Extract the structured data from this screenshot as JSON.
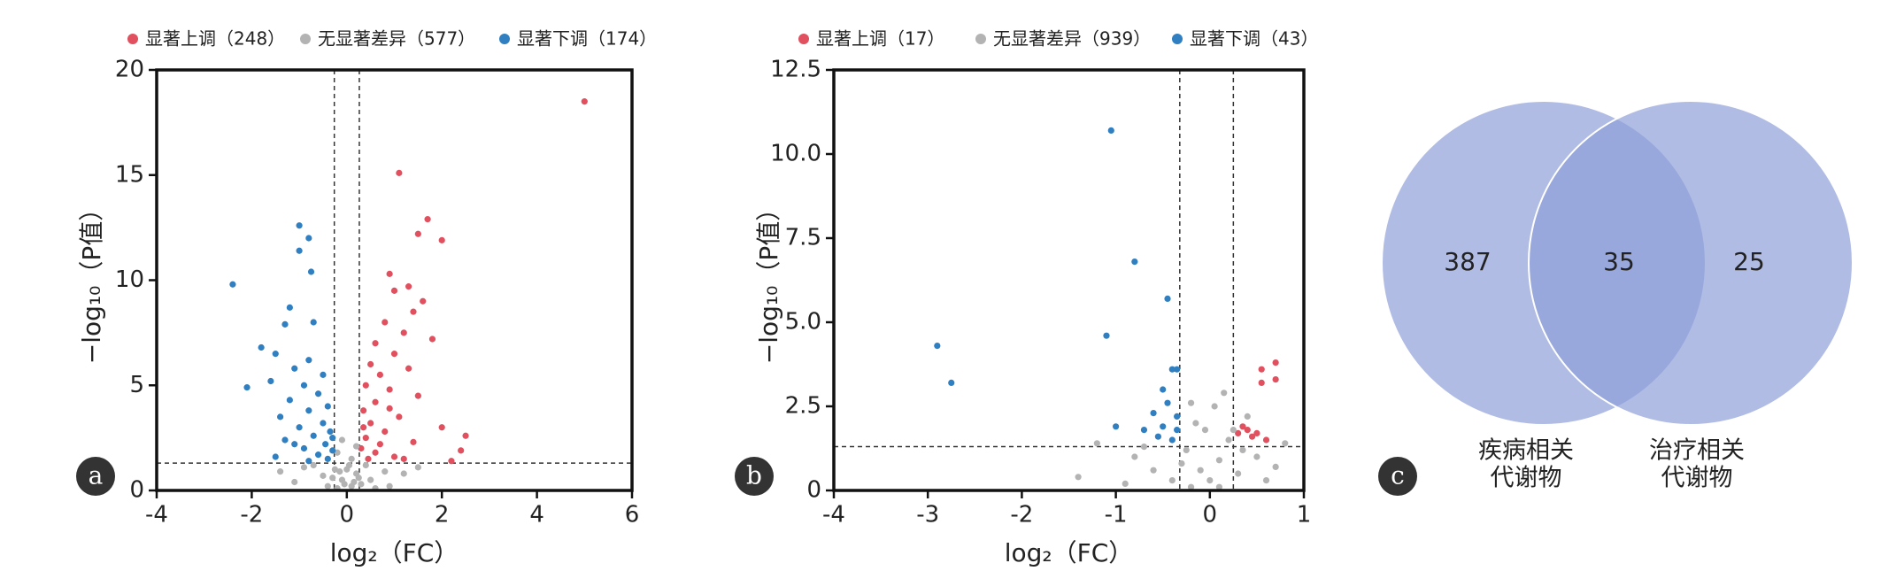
{
  "chart_data": [
    {
      "type": "scatter",
      "label": "a",
      "xlabel": "log₂（FC）",
      "ylabel": "−log₁₀（P值）",
      "xlim": [
        -4,
        6
      ],
      "xticks": [
        -4,
        -2,
        0,
        2,
        4,
        6
      ],
      "ylim": [
        0,
        20
      ],
      "yticks": [
        0,
        5,
        10,
        15,
        20
      ],
      "thresholds": {
        "x": [
          -0.263,
          0.263
        ],
        "y": 1.301
      },
      "series": [
        {
          "name": "显著上调（248）",
          "color": "#e0505e",
          "x": [
            5.0,
            1.1,
            1.7,
            1.5,
            2.0,
            0.9,
            1.3,
            1.0,
            1.6,
            1.4,
            0.8,
            1.2,
            0.6,
            1.8,
            1.0,
            0.5,
            0.7,
            1.3,
            0.4,
            0.9,
            1.5,
            0.6,
            0.35,
            1.1,
            0.5,
            2.0,
            0.8,
            0.4,
            1.4,
            2.5,
            0.3,
            0.6,
            1.0,
            2.4,
            0.45,
            0.7,
            0.35,
            0.9,
            1.2,
            2.2
          ],
          "values": [
            18.5,
            15.1,
            12.9,
            12.2,
            11.9,
            10.3,
            9.7,
            9.5,
            9.0,
            8.5,
            8.0,
            7.5,
            7.0,
            7.2,
            6.5,
            6.0,
            5.5,
            5.8,
            5.0,
            4.8,
            4.5,
            4.2,
            3.8,
            3.5,
            3.2,
            3.0,
            2.8,
            2.5,
            2.3,
            2.6,
            2.0,
            1.8,
            1.6,
            1.9,
            1.5,
            2.2,
            3.0,
            3.9,
            1.5,
            1.4
          ]
        },
        {
          "name": "无显著差异（577）",
          "color": "#b3b3b3",
          "x": [
            -0.2,
            0.1,
            -0.1,
            0.2,
            -0.25,
            0.05,
            0.15,
            -0.15,
            0.25,
            -0.05,
            0.5,
            -0.5,
            0.8,
            -0.9,
            0.4,
            -0.4,
            1.2,
            -1.1,
            0.6,
            -0.7,
            0.1,
            -0.2,
            0.2,
            -0.1,
            0.0,
            0.3,
            -0.3,
            1.5,
            -1.4,
            0.9
          ],
          "values": [
            0.1,
            0.2,
            0.5,
            0.8,
            1.0,
            1.2,
            0.4,
            0.9,
            0.6,
            0.3,
            0.5,
            0.7,
            0.9,
            1.1,
            1.2,
            0.2,
            0.8,
            0.4,
            0.1,
            1.2,
            1.5,
            1.8,
            2.1,
            2.4,
            1.0,
            0.3,
            0.6,
            1.1,
            0.9,
            0.2
          ]
        },
        {
          "name": "显著下调（174）",
          "color": "#2f7fc1",
          "x": [
            -2.4,
            -1.0,
            -0.8,
            -1.0,
            -0.75,
            -1.2,
            -0.7,
            -1.3,
            -1.8,
            -1.5,
            -0.8,
            -1.1,
            -0.5,
            -1.6,
            -0.9,
            -2.1,
            -0.6,
            -1.2,
            -0.4,
            -0.8,
            -1.4,
            -0.5,
            -1.0,
            -0.35,
            -0.7,
            -1.3,
            -0.45,
            -0.9,
            -0.3,
            -0.6,
            -1.5,
            -0.4,
            -0.8,
            -0.3,
            -1.1
          ],
          "values": [
            9.8,
            12.6,
            12.0,
            11.4,
            10.4,
            8.7,
            8.0,
            7.9,
            6.8,
            6.5,
            6.2,
            5.8,
            5.5,
            5.2,
            5.0,
            4.9,
            4.6,
            4.3,
            4.0,
            3.8,
            3.5,
            3.2,
            3.0,
            2.8,
            2.6,
            2.4,
            2.2,
            2.0,
            1.9,
            1.7,
            1.6,
            1.5,
            1.4,
            2.5,
            2.2
          ]
        }
      ]
    },
    {
      "type": "scatter",
      "label": "b",
      "xlabel": "log₂（FC）",
      "ylabel": "−log₁₀（P值）",
      "xlim": [
        -4,
        1
      ],
      "xticks": [
        -4,
        -3,
        -2,
        -1,
        0,
        1
      ],
      "ylim": [
        0,
        12.5
      ],
      "yticks": [
        0,
        2.5,
        {
          "value": 5,
          "label": "5.0"
        },
        7.5,
        {
          "value": 10,
          "label": "10.0"
        },
        12.5
      ],
      "thresholds": {
        "x": [
          -0.32,
          0.25
        ],
        "y": 1.301
      },
      "series": [
        {
          "name": "显著上调（17）",
          "color": "#e0505e",
          "x": [
            0.55,
            0.7,
            0.55,
            0.7,
            0.4,
            0.45,
            0.5,
            0.35,
            0.6,
            0.3
          ],
          "values": [
            3.6,
            3.8,
            3.2,
            3.3,
            1.8,
            1.6,
            1.7,
            1.9,
            1.5,
            1.7
          ]
        },
        {
          "name": "无显著差异（939）",
          "color": "#b3b3b3",
          "x": [
            -0.2,
            0.0,
            -0.1,
            0.1,
            -0.25,
            0.2,
            -0.15,
            0.05,
            0.15,
            -0.05,
            0.3,
            -0.3,
            0.5,
            -0.6,
            0.6,
            -0.8,
            -1.2,
            -1.4,
            0.8,
            0.7,
            -0.9,
            0.4,
            -0.2,
            0.25,
            -0.4,
            0.1,
            -0.7,
            0.35
          ],
          "values": [
            0.1,
            0.3,
            0.6,
            0.9,
            1.2,
            1.5,
            2.0,
            2.5,
            2.9,
            1.8,
            0.5,
            0.8,
            1.0,
            0.6,
            0.3,
            1.0,
            1.4,
            0.4,
            1.4,
            0.7,
            0.2,
            2.2,
            2.6,
            1.8,
            0.3,
            0.1,
            1.3,
            1.2
          ]
        },
        {
          "name": "显著下调（43）",
          "color": "#2f7fc1",
          "x": [
            -2.9,
            -2.75,
            -1.05,
            -0.8,
            -1.1,
            -0.45,
            -0.35,
            -0.4,
            -0.5,
            -0.45,
            -0.6,
            -0.35,
            -0.7,
            -0.5,
            -1.0,
            -0.4,
            -0.55,
            -0.35
          ],
          "values": [
            4.3,
            3.2,
            10.7,
            6.8,
            4.6,
            5.7,
            3.6,
            3.6,
            3.0,
            2.6,
            2.3,
            2.2,
            1.8,
            1.9,
            1.9,
            1.5,
            1.6,
            1.8
          ]
        }
      ]
    },
    {
      "type": "venn",
      "label": "c",
      "color": "#8e9fd8",
      "sets": [
        [
          "疾病相关",
          "代谢物"
        ],
        [
          "治疗相关",
          "代谢物"
        ]
      ],
      "values": [
        387,
        35,
        25
      ]
    }
  ]
}
